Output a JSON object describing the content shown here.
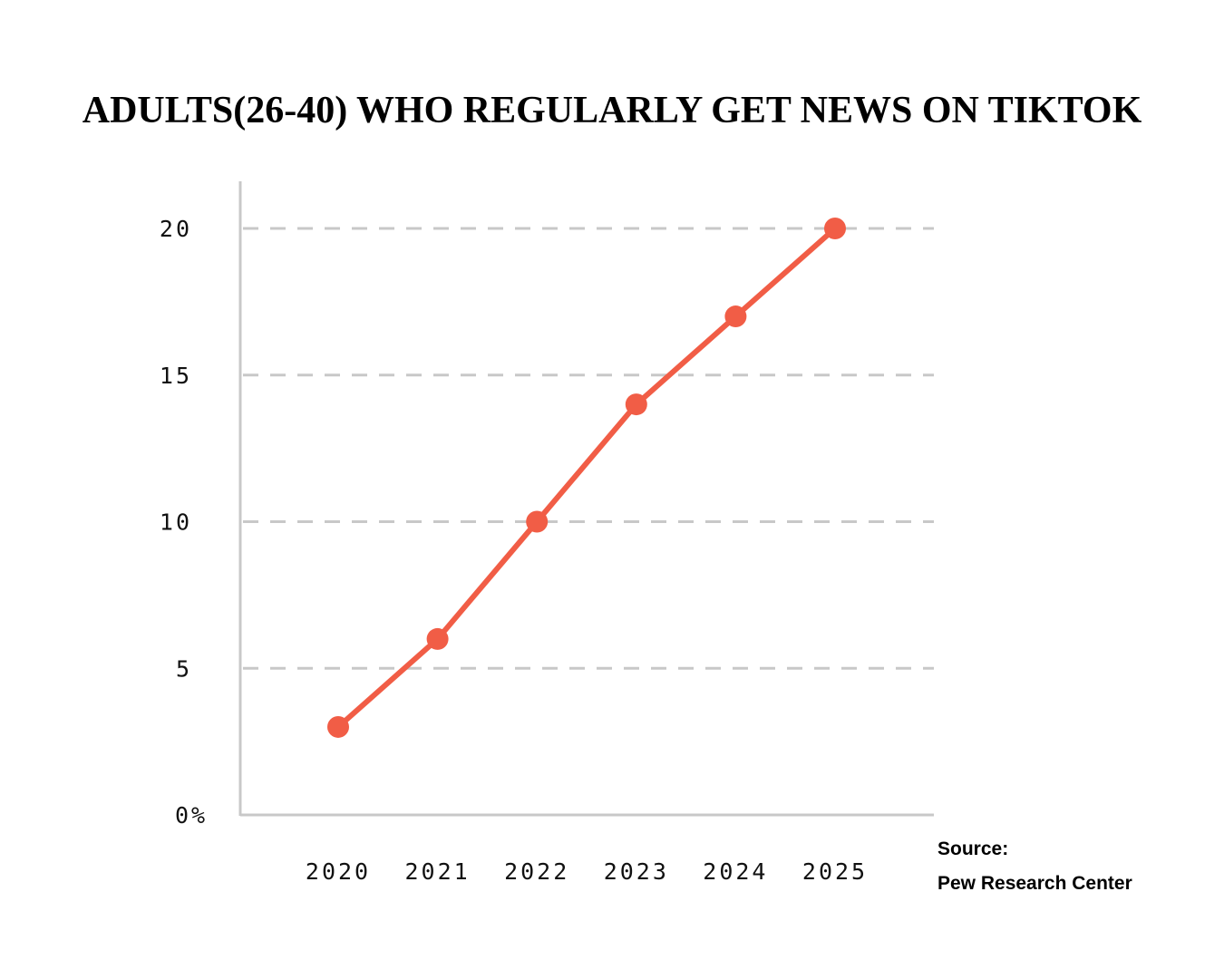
{
  "chart_data": {
    "type": "line",
    "title": "ADULTS(26-40) WHO REGULARLY GET NEWS ON TIKTOK",
    "categories": [
      "2020",
      "2021",
      "2022",
      "2023",
      "2024",
      "2025"
    ],
    "series": [
      {
        "values": [
          3,
          6,
          10,
          14,
          17,
          20
        ],
        "color": "#f15d46"
      }
    ],
    "y_ticks": [
      0,
      5,
      10,
      15,
      20
    ],
    "y_tick_labels": [
      "0%",
      "5",
      "10",
      "15",
      "20"
    ],
    "ylim": [
      0,
      20
    ],
    "grid": true,
    "grid_style": "dashed",
    "grid_color": "#c8c8c8",
    "axis_color": "#c8c8c8",
    "xlabel": "",
    "ylabel": ""
  },
  "source": {
    "label": "Source:",
    "name": "Pew Research Center"
  }
}
